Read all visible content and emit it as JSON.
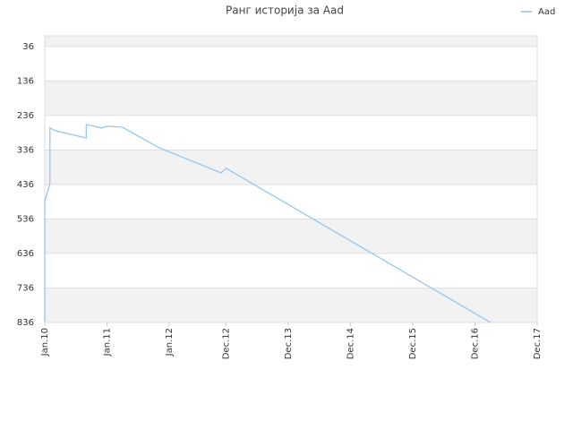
{
  "chart_data": {
    "type": "line",
    "title": "Ранг историја за Aad",
    "y_inverted": true,
    "ylim": [
      5,
      836
    ],
    "yticks": [
      36,
      136,
      236,
      336,
      436,
      536,
      636,
      736,
      836
    ],
    "xlim": [
      "2010-01",
      "2017-12"
    ],
    "xticks": [
      {
        "value": "2010-01",
        "label": "Jan.10"
      },
      {
        "value": "2011-01",
        "label": "Jan.11"
      },
      {
        "value": "2012-01",
        "label": "Jan.12"
      },
      {
        "value": "2012-12",
        "label": "Dec.12"
      },
      {
        "value": "2013-12",
        "label": "Dec.13"
      },
      {
        "value": "2014-12",
        "label": "Dec.14"
      },
      {
        "value": "2015-12",
        "label": "Dec.15"
      },
      {
        "value": "2016-12",
        "label": "Dec.16"
      },
      {
        "value": "2017-12",
        "label": "Dec.17"
      }
    ],
    "legend": "top-right",
    "series": [
      {
        "name": "Aad",
        "color": "#8ec3ee",
        "x": [
          "2010-01",
          "2010-01",
          "2010-02",
          "2010-02",
          "2010-02",
          "2010-03",
          "2010-09",
          "2010-09",
          "2010-12",
          "2011-01",
          "2011-04",
          "2011-11",
          "2012-11",
          "2012-12",
          "2017-03"
        ],
        "values": [
          836,
          485,
          433,
          381,
          272,
          280,
          301,
          262,
          272,
          267,
          270,
          329,
          402,
          389,
          836
        ]
      }
    ]
  }
}
